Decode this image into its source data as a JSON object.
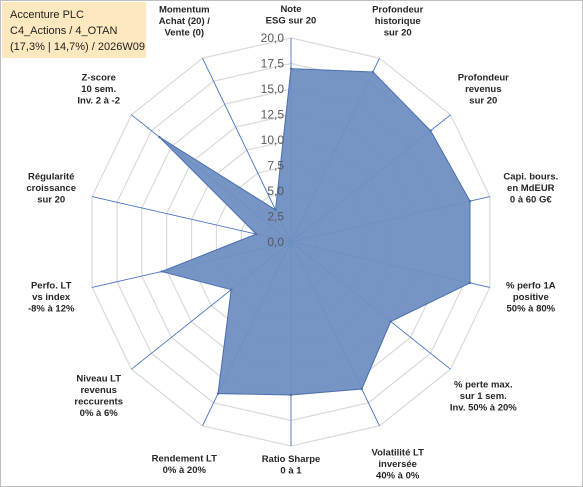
{
  "info_box": {
    "line1": "Accenture PLC",
    "line2": "C4_Actions / 4_OTAN",
    "line3": "(17,3% | 14,7%) / 2026W09"
  },
  "colors": {
    "fill": "#6f8fc2",
    "stroke": "#4a6fb0",
    "axis": "#4472c4",
    "grid": "#d9d9d9",
    "info_box_bg": "#fde8bf"
  },
  "chart_data": {
    "type": "radar",
    "range": [
      0,
      20
    ],
    "ticks": [
      "0,0",
      "2,5",
      "5,0",
      "7,5",
      "10,0",
      "12,5",
      "15,0",
      "17,5",
      "20,0"
    ],
    "categories": [
      [
        "Note",
        "ESG sur 20"
      ],
      [
        "Profondeur",
        "historique",
        "sur 20"
      ],
      [
        "Profondeur",
        "revenus",
        "sur 20"
      ],
      [
        "Capi. bours.",
        "en MdEUR",
        "0 à 60 G€"
      ],
      [
        "% perfo 1A",
        "positive",
        "50% à 80%"
      ],
      [
        "% perte max.",
        "sur 1 sem.",
        "Inv. 50% à 20%"
      ],
      [
        "Volatilité LT",
        "inversée",
        "40% à 0%"
      ],
      [
        "Ratio Sharpe",
        "0 à 1"
      ],
      [
        "Rendement LT",
        "0% à 20%"
      ],
      [
        "Niveau LT",
        "revenus",
        "reccurents",
        "0% à 6%"
      ],
      [
        "Perfo. LT",
        "vs index",
        "-8% à 12%"
      ],
      [
        "Régularité",
        "croissance",
        "sur 20"
      ],
      [
        "Z-score",
        "10 sem.",
        "Inv. 2 à -2"
      ],
      [
        "Momentum",
        "Achat (20) /",
        "Vente (0)"
      ]
    ],
    "values": [
      17.0,
      18.5,
      17.5,
      18.0,
      18.0,
      12.5,
      16.0,
      15.0,
      16.5,
      7.5,
      13.0,
      3.5,
      16.5,
      3.5
    ]
  }
}
